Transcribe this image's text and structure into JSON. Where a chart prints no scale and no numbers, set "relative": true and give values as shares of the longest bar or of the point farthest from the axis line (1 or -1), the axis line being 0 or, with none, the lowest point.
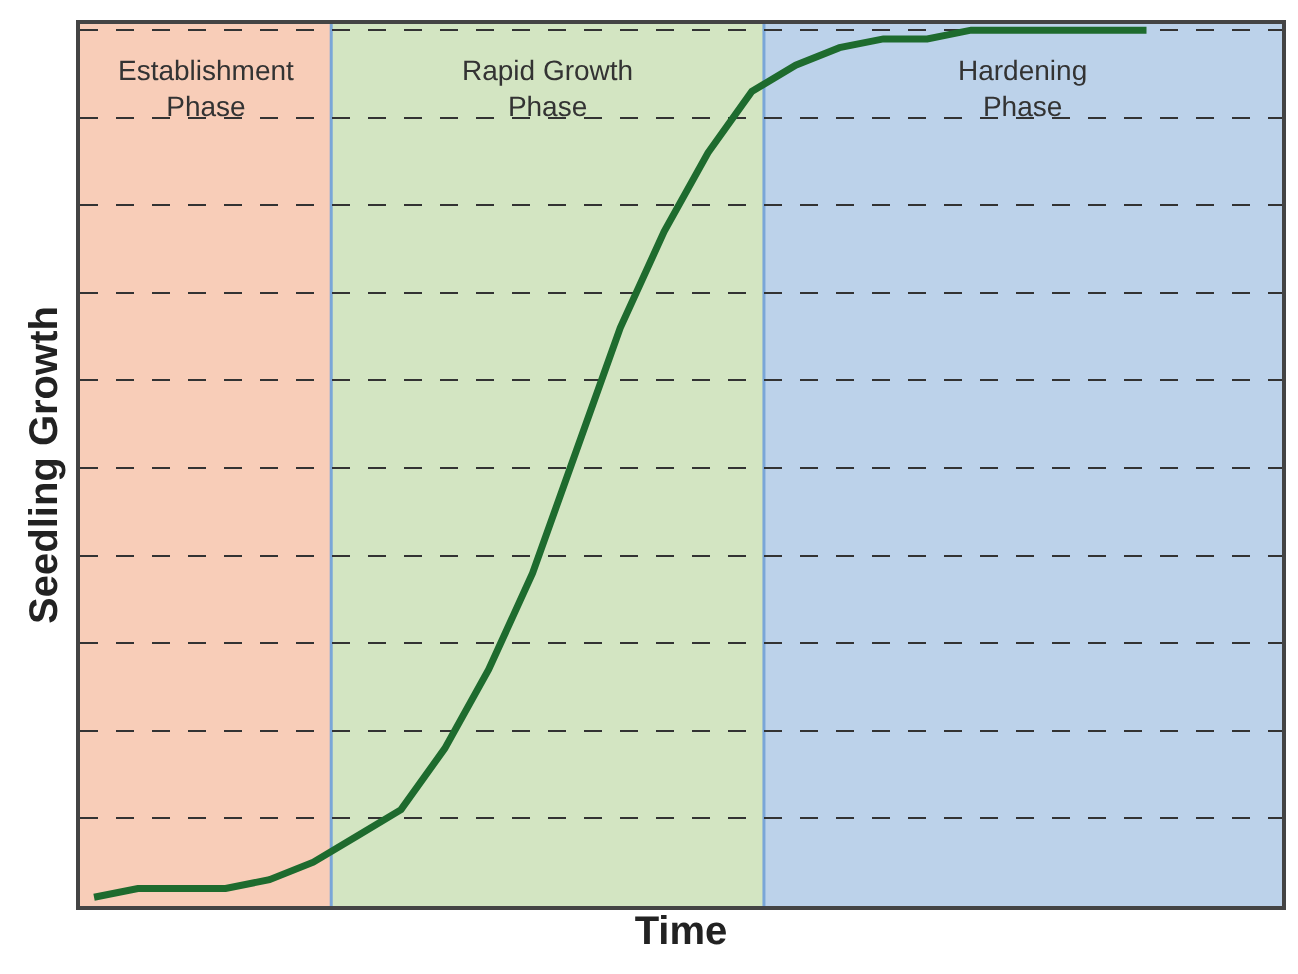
{
  "chart_data": {
    "type": "line",
    "relative": true,
    "xlabel": "Time",
    "ylabel": "Seedling Growth",
    "categories": [
      null,
      null,
      null,
      null,
      null,
      null,
      null,
      null,
      null,
      null,
      null,
      null,
      null,
      null,
      null,
      null,
      null,
      null,
      null,
      null,
      null,
      null,
      null,
      null,
      null
    ],
    "series": [
      {
        "color": "#1e6b2e",
        "values": [
          0.01,
          0.02,
          0.02,
          0.02,
          0.03,
          0.05,
          0.08,
          0.11,
          0.18,
          0.27,
          0.38,
          0.52,
          0.66,
          0.77,
          0.86,
          0.93,
          0.96,
          0.98,
          0.99,
          0.99,
          1.0,
          1.0,
          1.0,
          1.0,
          1.0
        ]
      }
    ],
    "annotations": [
      "Establishment\nPhase",
      "Rapid Growth\nPhase",
      "Hardening\nPhase"
    ],
    "grid": "y",
    "line_style": "solid",
    "marker": "none",
    "tick_labels": false
  }
}
